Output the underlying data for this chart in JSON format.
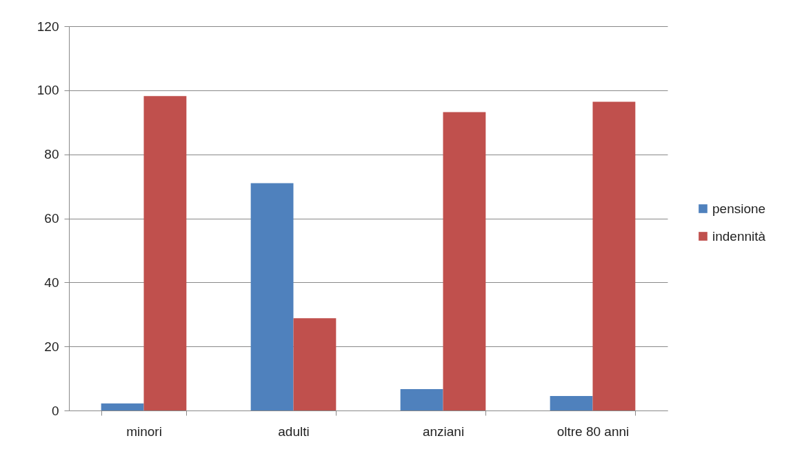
{
  "chart_data": {
    "type": "bar",
    "categories": [
      "minori",
      "adulti",
      "anziani",
      "oltre 80 anni"
    ],
    "series": [
      {
        "name": "pensione",
        "color": "#4f81bd",
        "values": [
          2.2,
          71.0,
          6.7,
          4.5
        ]
      },
      {
        "name": "indennità",
        "color": "#c0504d",
        "values": [
          98.2,
          28.8,
          93.2,
          96.4
        ]
      }
    ],
    "ylim": [
      0,
      120
    ],
    "yticks": [
      0,
      20,
      40,
      60,
      80,
      100,
      120
    ],
    "grid": "y",
    "legend": "right"
  }
}
